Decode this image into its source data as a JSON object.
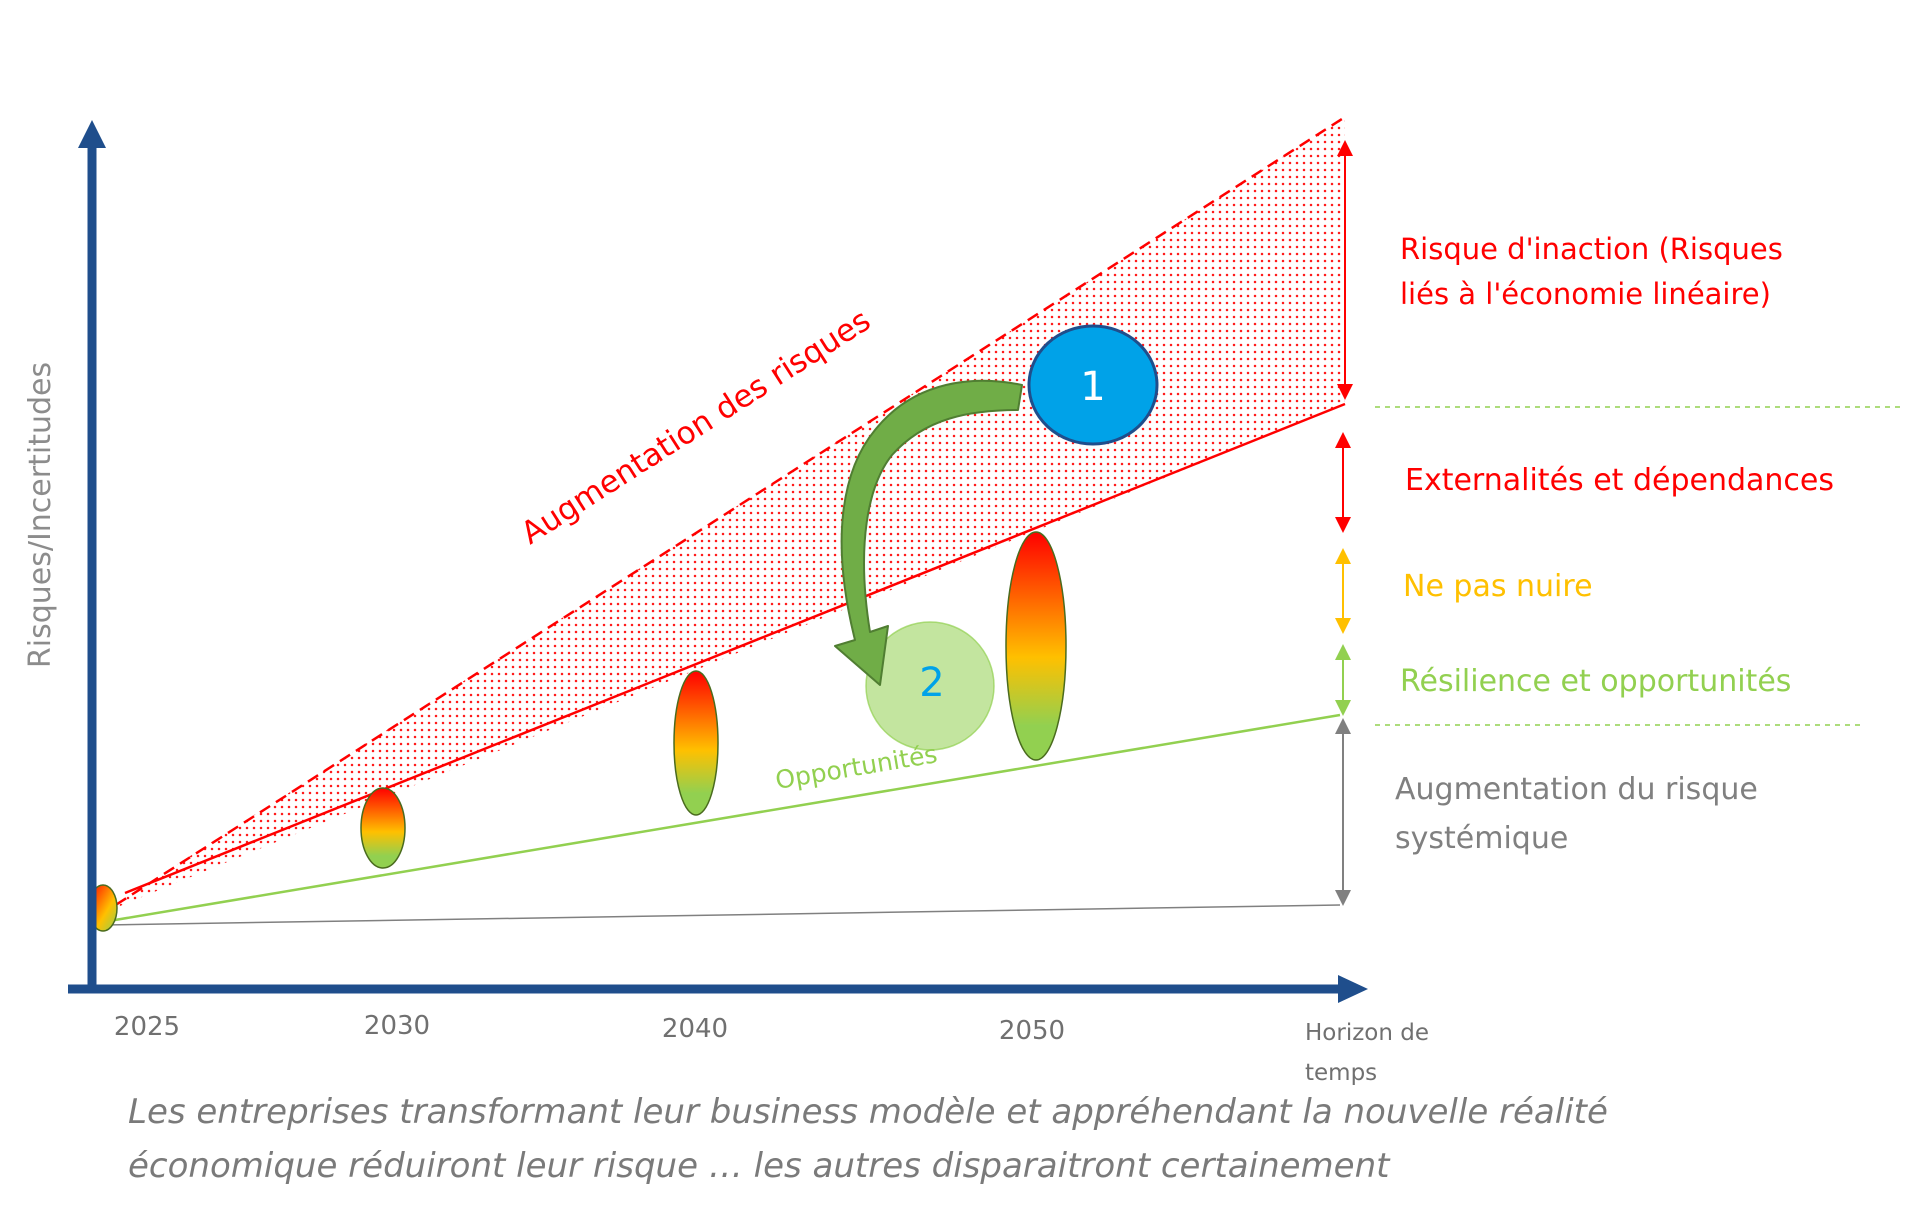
{
  "axes": {
    "y_label": "Risques/Incertitudes",
    "x_label_line1": "Horizon de",
    "x_label_line2": "temps",
    "x_ticks": [
      "2025",
      "2030",
      "2040",
      "2050"
    ]
  },
  "labels": {
    "risk_increase": "Augmentation des risques",
    "opportunities": "Opportunités",
    "marker_1": "1",
    "marker_2": "2"
  },
  "legend": {
    "inaction_line1": "Risque d'inaction (Risques",
    "inaction_line2": "liés à l'économie linéaire)",
    "externalities": "Externalités et dépendances",
    "do_no_harm": "Ne pas nuire",
    "resilience": "Résilience et opportunités",
    "systemic_line1": "Augmentation du risque",
    "systemic_line2": "systémique"
  },
  "caption": {
    "line1": "Les entreprises transformant leur business modèle et appréhendant la nouvelle réalité",
    "line2": "économique réduiront leur risque … les autres disparaitront certainement"
  },
  "colors": {
    "axis": "#1f4e8c",
    "risk_red": "#ff0000",
    "opportunity_green": "#92d050",
    "warning_orange": "#ffc000",
    "systemic_gray": "#808080",
    "marker_blue": "#00a2e8",
    "arrow_green": "#70ad47"
  }
}
